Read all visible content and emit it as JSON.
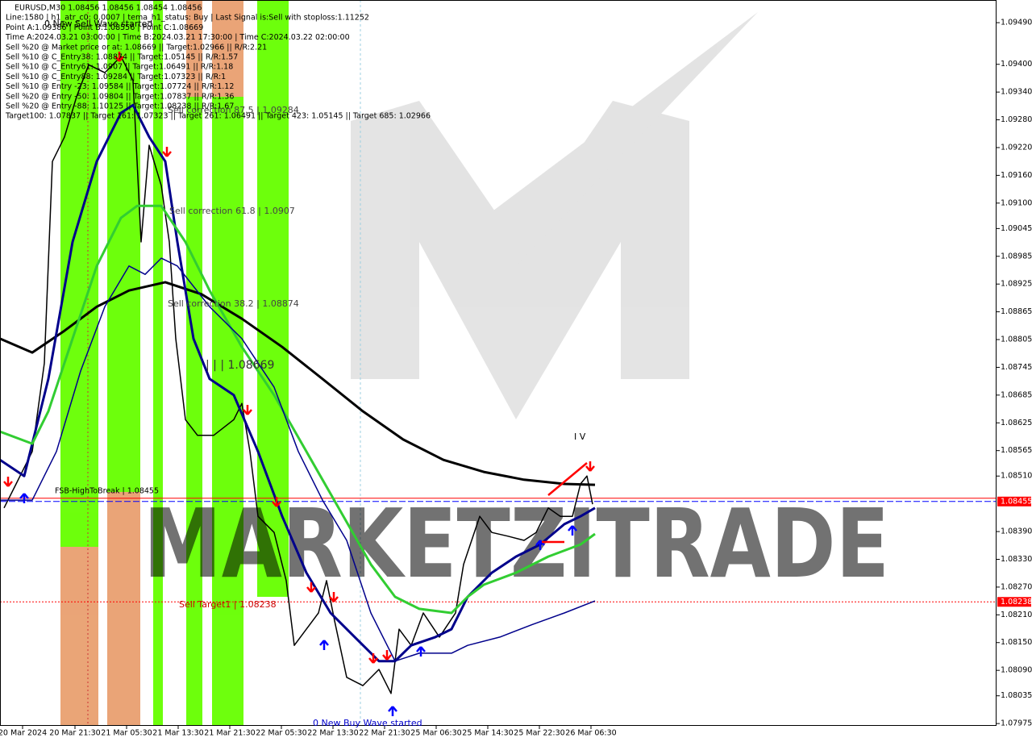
{
  "chart_data": {
    "type": "line",
    "info_lines": [
      "EURUSD,M30  1.08456 1.08456 1.08454 1.08456",
      "Line:1580 | h1_atr_c0: 0.0007 | tema_h1_status: Buy | Last Signal is:Sell with stoploss:1.11252",
      "Point A:1.09386 | Point B:1.08556 | Point C:1.08669",
      "Time A:2024.03.21 03:00:00 | Time B:2024.03.21 17:30:00 | Time C:2024.03.22 02:00:00",
      "Sell %20 @ Market price or at: 1.08669 || Target:1.02966 || R/R:2.21",
      "Sell %10 @ C_Entry38: 1.08874 || Target:1.05145 || R/R:1.57",
      "Sell %10 @ C_Entry61: 1.0907 || Target:1.06491 || R/R:1.18",
      "Sell %10 @ C_Entry88: 1.09284 || Target:1.07323 || R/R:1",
      "Sell %10 @ Entry -23: 1.09584 || Target:1.07724 || R/R:1.12",
      "Sell %20 @ Entry -50: 1.09804 || Target:1.07837 || R/R:1.36",
      "Sell %20 @ Entry -88: 1.10125 || Target:1.08238 || R/R:1.67",
      "Target100: 1.07837 || Target 161: 1.07323 || Target 261: 1.06491 || Target 423: 1.05145 || Target 685: 1.02966"
    ],
    "annotations": [
      "Sell correction 87.5 | 1.09284",
      "Sell correction 61.8 | 1.0907",
      "Sell correction 38.2 | 1.08874",
      "| | | 1.08669",
      "FSB-HighToBreak | 1.08455",
      "Sell Target1 | 1.08238",
      "0 New Buy Wave started",
      "0 New Sell Wave started",
      "I V"
    ],
    "watermark": "MARKETZITRADE",
    "xlim": [
      0,
      309
    ],
    "xticks": [
      {
        "value": 7,
        "label": "20 Mar 2024"
      },
      {
        "value": 23.25,
        "label": "20 Mar 21:30"
      },
      {
        "value": 39.25,
        "label": "21 Mar 05:30"
      },
      {
        "value": 55.25,
        "label": "21 Mar 13:30"
      },
      {
        "value": 71.25,
        "label": "21 Mar 21:30"
      },
      {
        "value": 87.25,
        "label": "22 Mar 05:30"
      },
      {
        "value": 103.25,
        "label": "22 Mar 13:30"
      },
      {
        "value": 119.25,
        "label": "22 Mar 21:30"
      },
      {
        "value": 135.25,
        "label": "25 Mar 06:30"
      },
      {
        "value": 151.25,
        "label": "25 Mar 14:30"
      },
      {
        "value": 167.25,
        "label": "25 Mar 22:30"
      },
      {
        "value": 183.25,
        "label": "26 Mar 06:30"
      }
    ],
    "ylim": [
      1.0797,
      1.09539
    ],
    "yticks": [
      {
        "value": 1.0949,
        "label": "1.09490"
      },
      {
        "value": 1.094,
        "label": "1.09400"
      },
      {
        "value": 1.0934,
        "label": "1.09340"
      },
      {
        "value": 1.0928,
        "label": "1.09280"
      },
      {
        "value": 1.0922,
        "label": "1.09220"
      },
      {
        "value": 1.0916,
        "label": "1.09160"
      },
      {
        "value": 1.091,
        "label": "1.09100"
      },
      1.09045,
      1.08985,
      1.08925,
      1.08865,
      {
        "value": 1.08805,
        "label": "1.08805"
      },
      1.08745,
      1.08685,
      1.08625,
      1.08565,
      {
        "value": 1.0851,
        "label": "1.08510"
      },
      {
        "value": 1.0839,
        "label": "1.08390"
      },
      {
        "value": 1.0833,
        "label": "1.08330"
      },
      {
        "value": 1.0827,
        "label": "1.08270"
      },
      {
        "value": 1.0821,
        "label": "1.08210"
      },
      {
        "value": 1.0815,
        "label": "1.08150"
      },
      {
        "value": 1.0809,
        "label": "1.08090"
      },
      1.08035,
      1.07975
    ],
    "levels": [
      {
        "value": 1.08462,
        "color": "#ff0000"
      },
      {
        "value": 1.08455,
        "color": "#0000ff",
        "badge": "1.08455"
      },
      {
        "value": 1.08238,
        "color": "#ff0000",
        "badge": "1.08238"
      }
    ],
    "series": [
      {
        "color": "#000000",
        "width": 1.5,
        "x": [
          1.25,
          5,
          10,
          13.75,
          16.25,
          20,
          23.75,
          27.5,
          32.5,
          37.5,
          41.25,
          43.75,
          46.25,
          50,
          52.5,
          54.5,
          57.5,
          61.25,
          66.25,
          72.5,
          75,
          77.5,
          80,
          85,
          88.75,
          91.25,
          95,
          98.75,
          101.25,
          103.75,
          107.5,
          112.5,
          117.5,
          121.25,
          123.75,
          127.5,
          131.25,
          136.25,
          141.25,
          143.75,
          146.25,
          148.75,
          152.5,
          157.5,
          162.5,
          166.25,
          170,
          173.75,
          177.5,
          180,
          182,
          183.75
        ],
        "values": [
          1.08441,
          1.08493,
          1.08563,
          1.08754,
          1.0919,
          1.09243,
          1.0933,
          1.09399,
          1.09382,
          1.09417,
          1.09365,
          1.09016,
          1.09225,
          1.09138,
          1.09016,
          1.08807,
          1.08632,
          1.08598,
          1.08598,
          1.08632,
          1.08667,
          1.08563,
          1.08423,
          1.08388,
          1.08284,
          1.08144,
          1.08179,
          1.08214,
          1.08284,
          1.08197,
          1.08075,
          1.08057,
          1.08092,
          1.0804,
          1.08179,
          1.08144,
          1.08214,
          1.08162,
          1.08214,
          1.08319,
          1.08371,
          1.08423,
          1.08388,
          1.0838,
          1.08371,
          1.08388,
          1.08441,
          1.08423,
          1.08423,
          1.08493,
          1.0851,
          1.08449
        ]
      },
      {
        "color": "#000000",
        "width": 3,
        "x": [
          0,
          10,
          20,
          30,
          40,
          51.25,
          62.5,
          75,
          87.5,
          100,
          112.5,
          125,
          137.5,
          150,
          162.5,
          175,
          184.5
        ],
        "values": [
          1.08807,
          1.08777,
          1.08824,
          1.08876,
          1.08911,
          1.08929,
          1.08903,
          1.0885,
          1.08789,
          1.0872,
          1.0865,
          1.08589,
          1.08545,
          1.08519,
          1.08502,
          1.08493,
          1.08491
        ]
      },
      {
        "color": "#00008b",
        "width": 3,
        "x": [
          0,
          7.5,
          15,
          22.5,
          30,
          37.5,
          41.25,
          46.25,
          51.25,
          55,
          60,
          65,
          72.5,
          80,
          87.5,
          95,
          102.5,
          110,
          117.5,
          122.5,
          127.5,
          135,
          140,
          145,
          152.5,
          160,
          167.5,
          175,
          180,
          184.5
        ],
        "values": [
          1.08545,
          1.0851,
          1.0872,
          1.09016,
          1.0919,
          1.09295,
          1.09312,
          1.09243,
          1.0919,
          1.09016,
          1.08807,
          1.0872,
          1.08685,
          1.08563,
          1.08423,
          1.08301,
          1.08214,
          1.08162,
          1.0811,
          1.0811,
          1.08144,
          1.08162,
          1.08179,
          1.08249,
          1.08301,
          1.08336,
          1.08362,
          1.08406,
          1.08423,
          1.08441
        ]
      },
      {
        "color": "#32cd32",
        "width": 3,
        "x": [
          0,
          10,
          15,
          22.5,
          30,
          37.5,
          42.5,
          50,
          57.5,
          65,
          75,
          85,
          95,
          105,
          115,
          122.5,
          130,
          140,
          145,
          150,
          160,
          170,
          180,
          184.5
        ],
        "values": [
          1.08606,
          1.0858,
          1.0865,
          1.08807,
          1.08964,
          1.09068,
          1.09094,
          1.09094,
          1.09016,
          1.08911,
          1.08789,
          1.08685,
          1.08563,
          1.08441,
          1.08319,
          1.08249,
          1.08223,
          1.08214,
          1.08249,
          1.08275,
          1.08301,
          1.08336,
          1.08362,
          1.08385
        ]
      },
      {
        "color": "#00008b",
        "width": 1.5,
        "x": [
          0,
          10,
          17.5,
          25,
          32.5,
          40,
          45,
          50,
          55,
          65,
          75,
          85,
          92.5,
          100,
          107.5,
          115,
          122.5,
          130,
          140,
          145,
          155,
          165,
          175,
          184.5
        ],
        "values": [
          1.08458,
          1.08458,
          1.08563,
          1.08737,
          1.08876,
          1.08964,
          1.08946,
          1.08981,
          1.08964,
          1.08876,
          1.08807,
          1.08702,
          1.08563,
          1.08458,
          1.08371,
          1.08214,
          1.0811,
          1.08127,
          1.08127,
          1.08144,
          1.08162,
          1.08189,
          1.08214,
          1.0824
        ]
      }
    ]
  }
}
